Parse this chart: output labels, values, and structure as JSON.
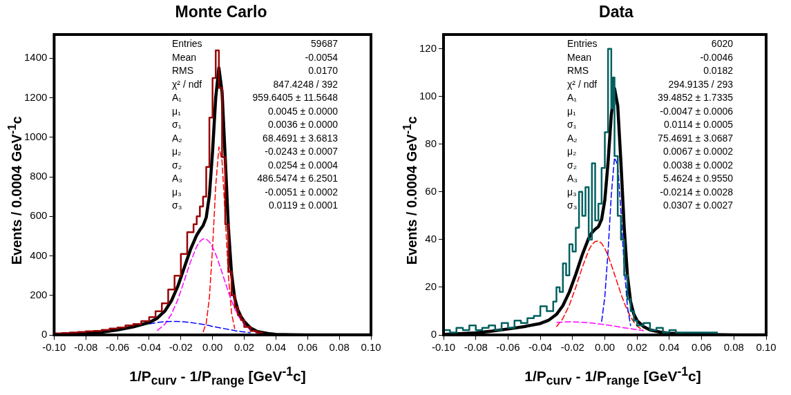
{
  "chart_data": [
    {
      "type": "line",
      "title": "Monte Carlo",
      "xlabel": "1/P$_{curv}$ - 1/P$_{range}$ [GeV$^{-1}$c]",
      "ylabel": "Events / 0.0004 GeV$^{-1}$c",
      "xlim": [
        -0.1,
        0.1
      ],
      "xticks": [
        {
          "value": -0.1,
          "label": "-0.10"
        },
        {
          "value": -0.08,
          "label": "-0.08"
        },
        {
          "value": -0.06,
          "label": "-0.06"
        },
        {
          "value": -0.04,
          "label": "-0.04"
        },
        {
          "value": -0.02,
          "label": "-0.02"
        },
        {
          "value": 0,
          "label": "0.00"
        },
        {
          "value": 0.02,
          "label": "0.02"
        },
        {
          "value": 0.04,
          "label": "0.04"
        },
        {
          "value": 0.06,
          "label": "0.06"
        },
        {
          "value": 0.08,
          "label": "0.08"
        },
        {
          "value": 0.1,
          "label": "0.10"
        }
      ],
      "ylim": [
        0,
        1520
      ],
      "yticks": [
        0,
        200,
        400,
        600,
        800,
        1000,
        1200,
        1400
      ],
      "grid": false,
      "legend": false,
      "marker": "none",
      "annotations": [
        "Entries",
        "59687",
        "Mean",
        "-0.0054",
        "RMS",
        "0.0170",
        "χ² / ndf",
        "847.4248 / 392",
        "A₁",
        "959.6405 ± 11.5648",
        "μ₁",
        "0.0045 ± 0.0000",
        "σ₁",
        "0.0036 ± 0.0000",
        "A₂",
        "68.4691 ± 3.6813",
        "μ₂",
        "-0.0243 ± 0.0007",
        "σ₂",
        "0.0254 ± 0.0004",
        "A₃",
        "486.5474 ± 6.2501",
        "μ₃",
        "-0.0051 ± 0.0002",
        "σ₃",
        "0.0119 ± 0.0001"
      ],
      "x": [
        -0.1,
        -0.09,
        -0.08,
        -0.07,
        -0.06,
        -0.05,
        -0.04,
        -0.035,
        -0.03,
        -0.026,
        -0.022,
        -0.018,
        -0.014,
        -0.01,
        -0.008,
        -0.006,
        -0.004,
        -0.002,
        0,
        0.002,
        0.004,
        0.006,
        0.008,
        0.01,
        0.012,
        0.014,
        0.016,
        0.018,
        0.02,
        0.024,
        0.028,
        0.035,
        0.04,
        0.05,
        0.06,
        0.08,
        0.1
      ],
      "series": [
        {
          "color": "#ff0000",
          "line_style": "dashed",
          "values": [
            null,
            null,
            null,
            null,
            null,
            null,
            null,
            null,
            null,
            null,
            null,
            null,
            null,
            null,
            null,
            14,
            59,
            188,
            440,
            754,
            951,
            880,
            599,
            298,
            110,
            30,
            null,
            null,
            null,
            null,
            null,
            null,
            null,
            null,
            null,
            null,
            null
          ]
        },
        {
          "color": "#ff00ff",
          "line_style": "dashed",
          "values": [
            null,
            null,
            null,
            null,
            null,
            null,
            null,
            21,
            55,
            104,
            177,
            271,
            368,
            447,
            473,
            486,
            485,
            471,
            444,
            408,
            363,
            315,
            266,
            217,
            173,
            133,
            101,
            74,
            53,
            24,
            10,
            null,
            null,
            null,
            null,
            null,
            null
          ]
        },
        {
          "color": "#0000ff",
          "line_style": "dashed",
          "values": [
            null,
            null,
            null,
            null,
            null,
            null,
            56,
            63,
            67,
            68,
            68,
            66,
            63,
            58,
            56,
            53,
            50,
            47,
            43,
            40,
            37,
            34,
            31,
            28,
            25,
            22,
            19,
            17,
            15,
            11,
            null,
            null,
            null,
            null,
            null,
            null,
            null
          ]
        },
        {
          "color": "#000000",
          "line_style": "solid",
          "values": [
            1,
            2,
            6,
            14,
            25,
            41,
            63,
            84,
            122,
            172,
            245,
            337,
            431,
            505,
            531,
            553,
            594,
            706,
            927,
            1202,
            1351,
            1229,
            896,
            543,
            308,
            185,
            126,
            92,
            68,
            35,
            18,
            7,
            3,
            1,
            0,
            0,
            0
          ]
        },
        {
          "type": "step",
          "color": "#990000",
          "line_style": "solid",
          "x": [
            -0.1,
            -0.095,
            -0.09,
            -0.085,
            -0.08,
            -0.075,
            -0.07,
            -0.065,
            -0.06,
            -0.055,
            -0.05,
            -0.045,
            -0.04,
            -0.036,
            -0.032,
            -0.028,
            -0.024,
            -0.02,
            -0.016,
            -0.012,
            -0.01,
            -0.008,
            -0.006,
            -0.004,
            -0.002,
            0,
            0.002,
            0.004,
            0.006,
            0.008,
            0.01,
            0.012,
            0.014,
            0.016,
            0.018,
            0.02,
            0.024,
            0.028,
            0.032
          ],
          "values": [
            5,
            8,
            10,
            12,
            15,
            18,
            20,
            25,
            32,
            38,
            48,
            55,
            70,
            90,
            120,
            160,
            230,
            300,
            410,
            520,
            560,
            600,
            650,
            700,
            850,
            1100,
            1300,
            1440,
            1250,
            900,
            560,
            320,
            200,
            140,
            100,
            75,
            40,
            20,
            12
          ]
        }
      ]
    },
    {
      "type": "line",
      "title": "Data",
      "xlabel": "1/P$_{curv}$ - 1/P$_{range}$ [GeV$^{-1}$c]",
      "ylabel": "Events / 0.0004 GeV$^{-1}$c",
      "xlim": [
        -0.1,
        0.1
      ],
      "xticks": [
        {
          "value": -0.1,
          "label": "-0.10"
        },
        {
          "value": -0.08,
          "label": "-0.08"
        },
        {
          "value": -0.06,
          "label": "-0.06"
        },
        {
          "value": -0.04,
          "label": "-0.04"
        },
        {
          "value": -0.02,
          "label": "-0.02"
        },
        {
          "value": 0,
          "label": "0.00"
        },
        {
          "value": 0.02,
          "label": "0.02"
        },
        {
          "value": 0.04,
          "label": "0.04"
        },
        {
          "value": 0.06,
          "label": "0.06"
        },
        {
          "value": 0.08,
          "label": "0.08"
        },
        {
          "value": 0.1,
          "label": "0.10"
        }
      ],
      "ylim": [
        0,
        126
      ],
      "yticks": [
        0,
        20,
        40,
        60,
        80,
        100,
        120
      ],
      "grid": false,
      "legend": false,
      "marker": "none",
      "annotations": [
        "Entries",
        "6020",
        "Mean",
        "-0.0046",
        "RMS",
        "0.0182",
        "χ² / ndf",
        "294.9135 / 293",
        "A₁",
        "39.4852 ± 1.7335",
        "μ₁",
        "-0.0047 ± 0.0006",
        "σ₁",
        "0.0114 ± 0.0005",
        "A₂",
        "75.4691 ± 3.0687",
        "μ₂",
        "0.0067 ± 0.0002",
        "σ₂",
        "0.0038 ± 0.0002",
        "A₃",
        "5.4624 ± 0.9550",
        "μ₃",
        "-0.0214 ± 0.0028",
        "σ₃",
        "0.0307 ± 0.0027"
      ],
      "x": [
        -0.1,
        -0.09,
        -0.08,
        -0.07,
        -0.06,
        -0.05,
        -0.04,
        -0.035,
        -0.03,
        -0.026,
        -0.022,
        -0.018,
        -0.014,
        -0.01,
        -0.008,
        -0.006,
        -0.004,
        -0.002,
        0,
        0.002,
        0.004,
        0.006,
        0.008,
        0.01,
        0.012,
        0.014,
        0.016,
        0.018,
        0.02,
        0.024,
        0.028,
        0.035,
        0.04,
        0.05,
        0.06,
        0.08,
        0.1
      ],
      "series": [
        {
          "color": "#ff0000",
          "line_style": "dashed",
          "values": [
            null,
            null,
            null,
            null,
            null,
            null,
            null,
            null,
            3.4,
            6.9,
            12.5,
            20,
            28.3,
            35.5,
            37.9,
            39.2,
            39.4,
            38.4,
            36.3,
            33.2,
            29.5,
            25.4,
            21.3,
            17.2,
            13.5,
            10.3,
            7.5,
            5.4,
            3.7,
            1.7,
            null,
            null,
            null,
            null,
            null,
            null,
            null
          ]
        },
        {
          "color": "#0000ff",
          "line_style": "dashed",
          "values": [
            null,
            null,
            null,
            null,
            null,
            null,
            null,
            null,
            null,
            null,
            null,
            null,
            null,
            null,
            null,
            null,
            null,
            5.5,
            16,
            35.1,
            58.7,
            74.3,
            71.3,
            51.7,
            28.7,
            11.9,
            3.8,
            null,
            null,
            null,
            null,
            null,
            null,
            null,
            null,
            null,
            null
          ]
        },
        {
          "color": "#ff00ff",
          "line_style": "dashed",
          "values": [
            null,
            null,
            null,
            null,
            null,
            null,
            null,
            null,
            5.2,
            5.4,
            5.5,
            5.4,
            5.3,
            5.1,
            5.0,
            4.8,
            4.6,
            4.5,
            4.3,
            4.1,
            3.9,
            3.7,
            3.5,
            3.2,
            3.0,
            2.8,
            2.6,
            2.4,
            2.2,
            1.8,
            null,
            null,
            null,
            null,
            null,
            null,
            null
          ]
        },
        {
          "color": "#000000",
          "line_style": "solid",
          "values": [
            0.2,
            0.5,
            0.9,
            1.6,
            2.5,
            3.5,
            4.8,
            6.1,
            8.6,
            12.3,
            18.0,
            25.4,
            33.6,
            40.6,
            42.9,
            44.3,
            45.4,
            48.4,
            56.6,
            72.4,
            92.1,
            103.4,
            96.1,
            72.1,
            45.2,
            25.0,
            13.9,
            8.7,
            6.0,
            3.5,
            2.1,
            1.1,
            0.7,
            0.4,
            0.2,
            0,
            0
          ]
        },
        {
          "type": "step",
          "color": "#006060",
          "line_style": "solid",
          "x": [
            -0.1,
            -0.096,
            -0.092,
            -0.088,
            -0.084,
            -0.08,
            -0.076,
            -0.072,
            -0.068,
            -0.064,
            -0.06,
            -0.056,
            -0.052,
            -0.048,
            -0.044,
            -0.04,
            -0.036,
            -0.032,
            -0.03,
            -0.028,
            -0.026,
            -0.024,
            -0.022,
            -0.02,
            -0.018,
            -0.016,
            -0.014,
            -0.012,
            -0.01,
            -0.008,
            -0.006,
            -0.004,
            -0.002,
            0,
            0.002,
            0.004,
            0.005,
            0.006,
            0.008,
            0.01,
            0.012,
            0.014,
            0.016,
            0.018,
            0.02,
            0.024,
            0.028,
            0.032,
            0.036,
            0.04,
            0.044,
            0.05,
            0.06,
            0.07
          ],
          "values": [
            1,
            2,
            1,
            3,
            2,
            4,
            2,
            3,
            4,
            2,
            5,
            3,
            6,
            5,
            7,
            8,
            12,
            10,
            14,
            20,
            18,
            30,
            25,
            38,
            35,
            45,
            60,
            50,
            62,
            40,
            72,
            48,
            55,
            70,
            85,
            120,
            95,
            108,
            75,
            50,
            40,
            25,
            15,
            10,
            6,
            4,
            5,
            2,
            3,
            1,
            2,
            1,
            1,
            1
          ]
        }
      ]
    }
  ]
}
